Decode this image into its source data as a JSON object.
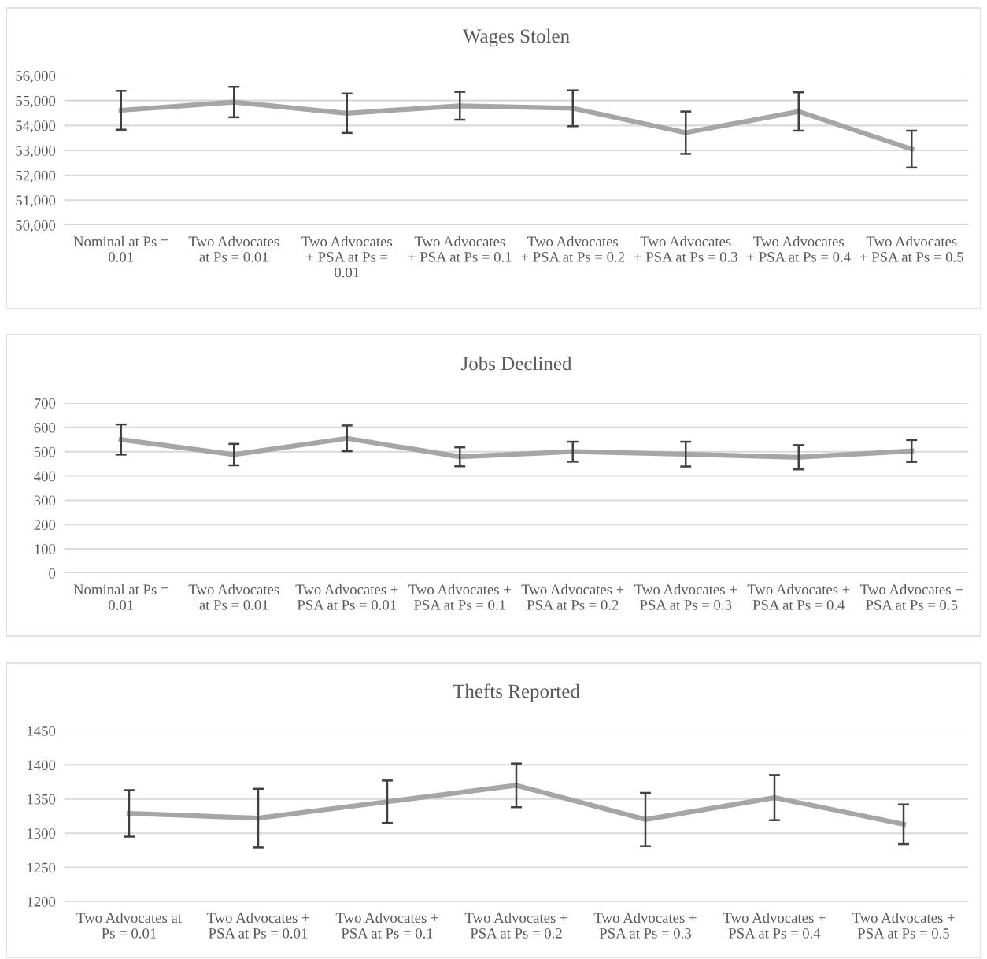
{
  "chart_data": [
    {
      "type": "line",
      "title": "Wages Stolen",
      "categories": [
        "Nominal at Ps =\n0.01",
        "Two Advocates\nat Ps = 0.01",
        "Two Advocates\n+ PSA at Ps =\n0.01",
        "Two Advocates\n+ PSA at Ps = 0.1",
        "Two Advocates\n+ PSA at Ps = 0.2",
        "Two Advocates\n+ PSA at Ps = 0.3",
        "Two Advocates\n+ PSA at Ps = 0.4",
        "Two Advocates\n+ PSA at Ps = 0.5"
      ],
      "series": [
        {
          "color": "#a6a6a6",
          "values": [
            54610,
            54940,
            54490,
            54790,
            54690,
            53710,
            54560,
            53050
          ],
          "errors": [
            780,
            610,
            790,
            560,
            720,
            850,
            770,
            740
          ]
        }
      ],
      "ylim": [
        50000,
        56000
      ],
      "yticks": [
        {
          "value": 50000,
          "label": "50,000"
        },
        {
          "value": 51000,
          "label": "51,000"
        },
        {
          "value": 52000,
          "label": "52,000"
        },
        {
          "value": 53000,
          "label": "53,000"
        },
        {
          "value": 54000,
          "label": "54,000"
        },
        {
          "value": 55000,
          "label": "55,000"
        },
        {
          "value": 56000,
          "label": "56,000"
        }
      ],
      "grid": "y",
      "marker": "none",
      "line_style": "solid"
    },
    {
      "type": "line",
      "title": "Jobs Declined",
      "categories": [
        "Nominal at Ps =\n0.01",
        "Two Advocates\nat Ps = 0.01",
        "Two Advocates +\nPSA at Ps = 0.01",
        "Two Advocates +\nPSA at Ps = 0.1",
        "Two Advocates +\nPSA at Ps = 0.2",
        "Two Advocates +\nPSA at Ps = 0.3",
        "Two Advocates +\nPSA at Ps = 0.4",
        "Two Advocates +\nPSA at Ps = 0.5"
      ],
      "series": [
        {
          "color": "#a6a6a6",
          "values": [
            550,
            488,
            555,
            479,
            500,
            490,
            477,
            503
          ],
          "errors": [
            62,
            44,
            53,
            39,
            41,
            51,
            50,
            45
          ]
        }
      ],
      "ylim": [
        0,
        700
      ],
      "yticks": [
        0,
        100,
        200,
        300,
        400,
        500,
        600,
        700
      ],
      "grid": "y",
      "marker": "none",
      "line_style": "solid"
    },
    {
      "type": "line",
      "title": "Thefts Reported",
      "categories": [
        "Two Advocates at\nPs = 0.01",
        "Two Advocates +\nPSA at Ps = 0.01",
        "Two Advocates +\nPSA at Ps = 0.1",
        "Two Advocates +\nPSA at Ps = 0.2",
        "Two Advocates +\nPSA at Ps = 0.3",
        "Two Advocates +\nPSA at Ps = 0.4",
        "Two Advocates +\nPSA at Ps = 0.5"
      ],
      "series": [
        {
          "color": "#a6a6a6",
          "values": [
            1329,
            1322,
            1346,
            1370,
            1320,
            1352,
            1313
          ],
          "errors": [
            34,
            43,
            31,
            32,
            39,
            33,
            29
          ]
        }
      ],
      "ylim": [
        1200,
        1450
      ],
      "yticks": [
        1200,
        1250,
        1300,
        1350,
        1400,
        1450
      ],
      "grid": "y",
      "marker": "none",
      "line_style": "solid"
    }
  ]
}
